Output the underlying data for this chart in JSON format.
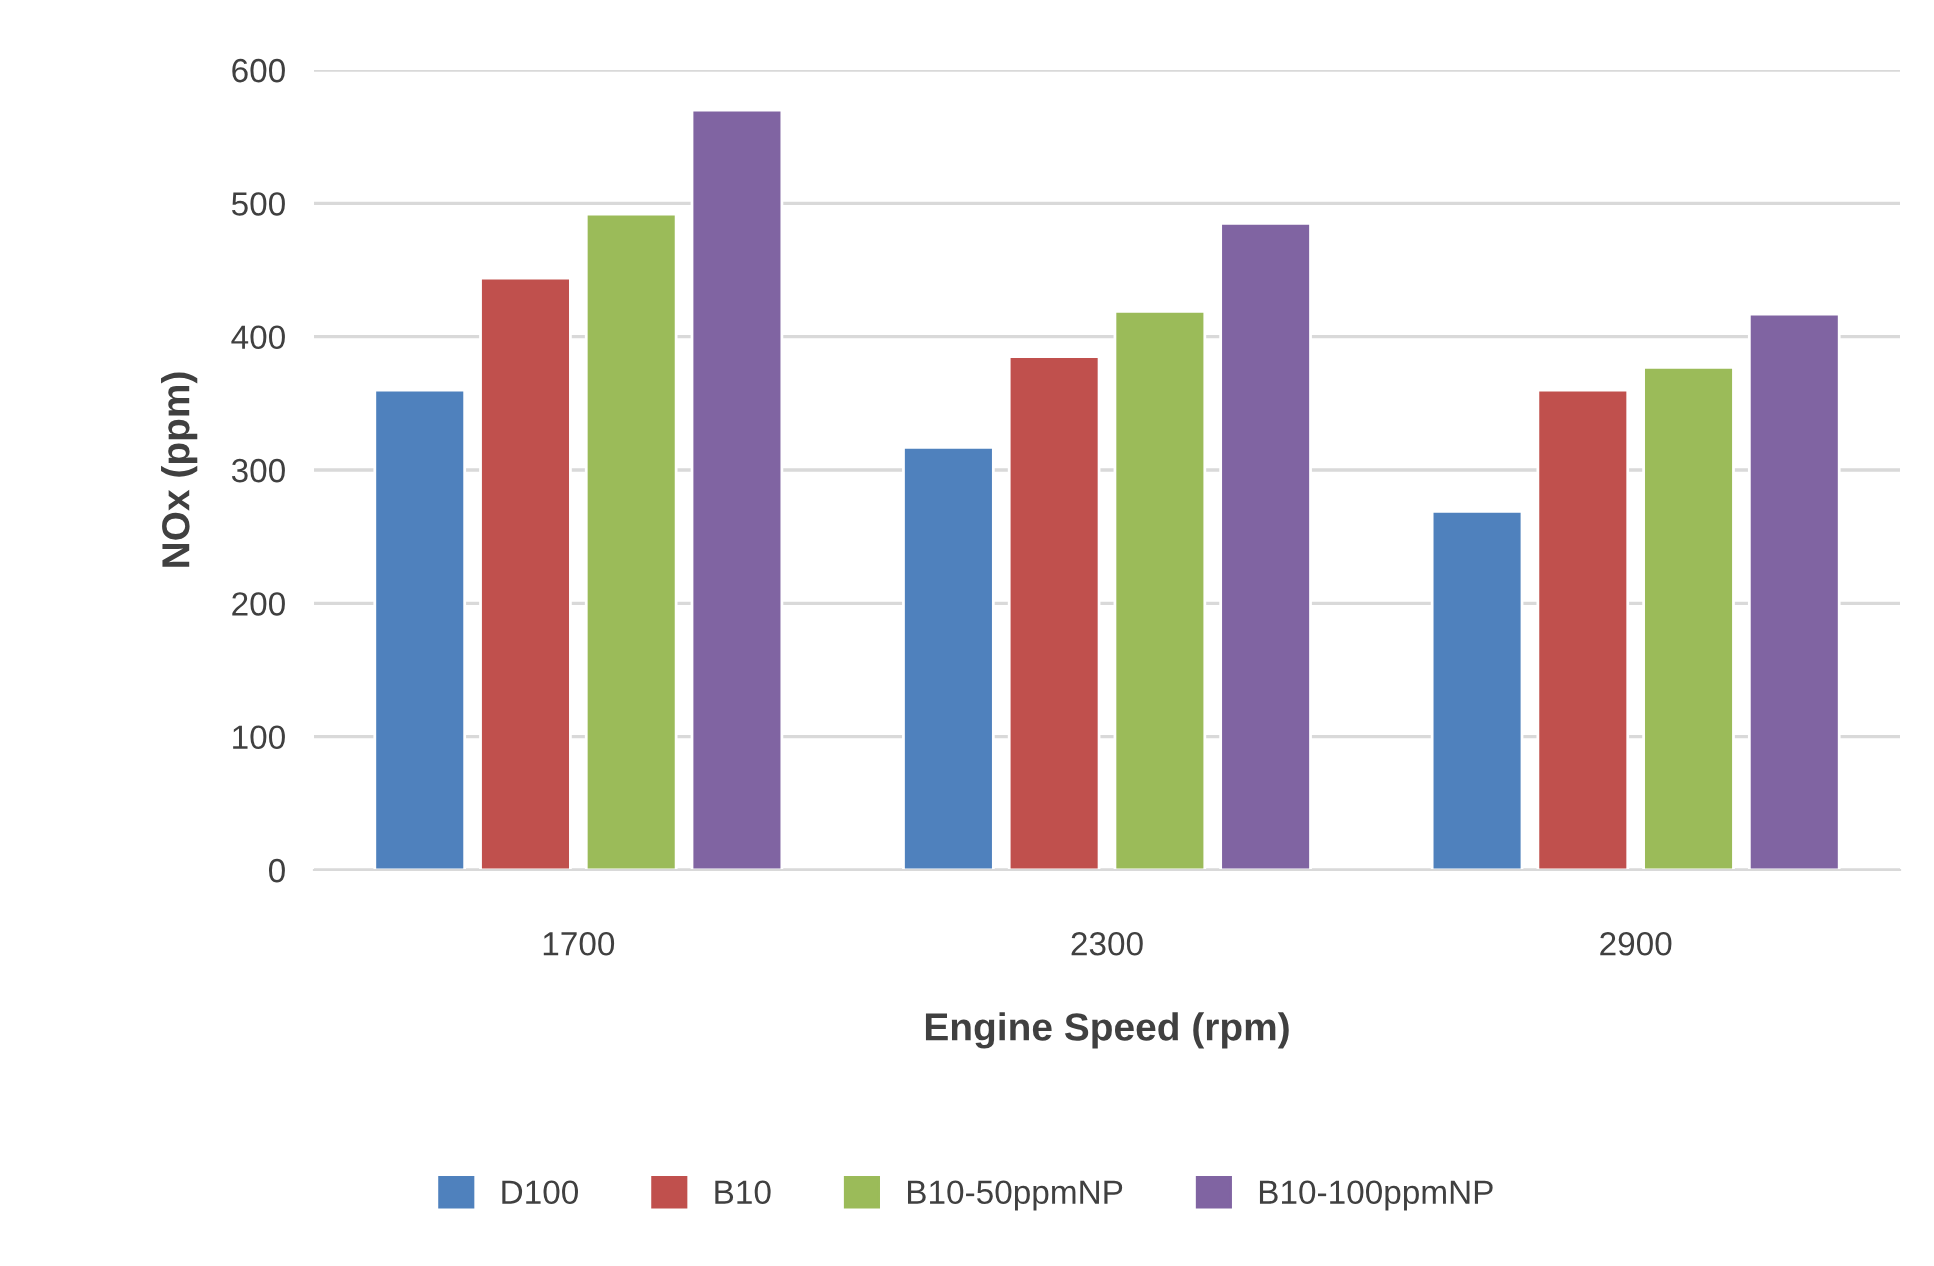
{
  "chart_data": {
    "type": "bar",
    "xlabel": "Engine Speed (rpm)",
    "ylabel": "NOx (ppm)",
    "categories": [
      "1700",
      "2300",
      "2900"
    ],
    "series": [
      {
        "name": "D100",
        "color": "#4f81bd",
        "values": [
          360,
          317,
          269
        ]
      },
      {
        "name": "B10",
        "color": "#c0504d",
        "values": [
          444,
          385,
          360
        ]
      },
      {
        "name": "B10-50ppmNP",
        "color": "#9bbb59",
        "values": [
          492,
          419,
          377
        ]
      },
      {
        "name": "B10-100ppmNP",
        "color": "#8064a2",
        "values": [
          570,
          485,
          417
        ]
      }
    ],
    "ylim": [
      0,
      600
    ],
    "yticks": [
      0,
      100,
      200,
      300,
      400,
      500,
      600
    ],
    "grid": "y",
    "legend": "bottom"
  }
}
